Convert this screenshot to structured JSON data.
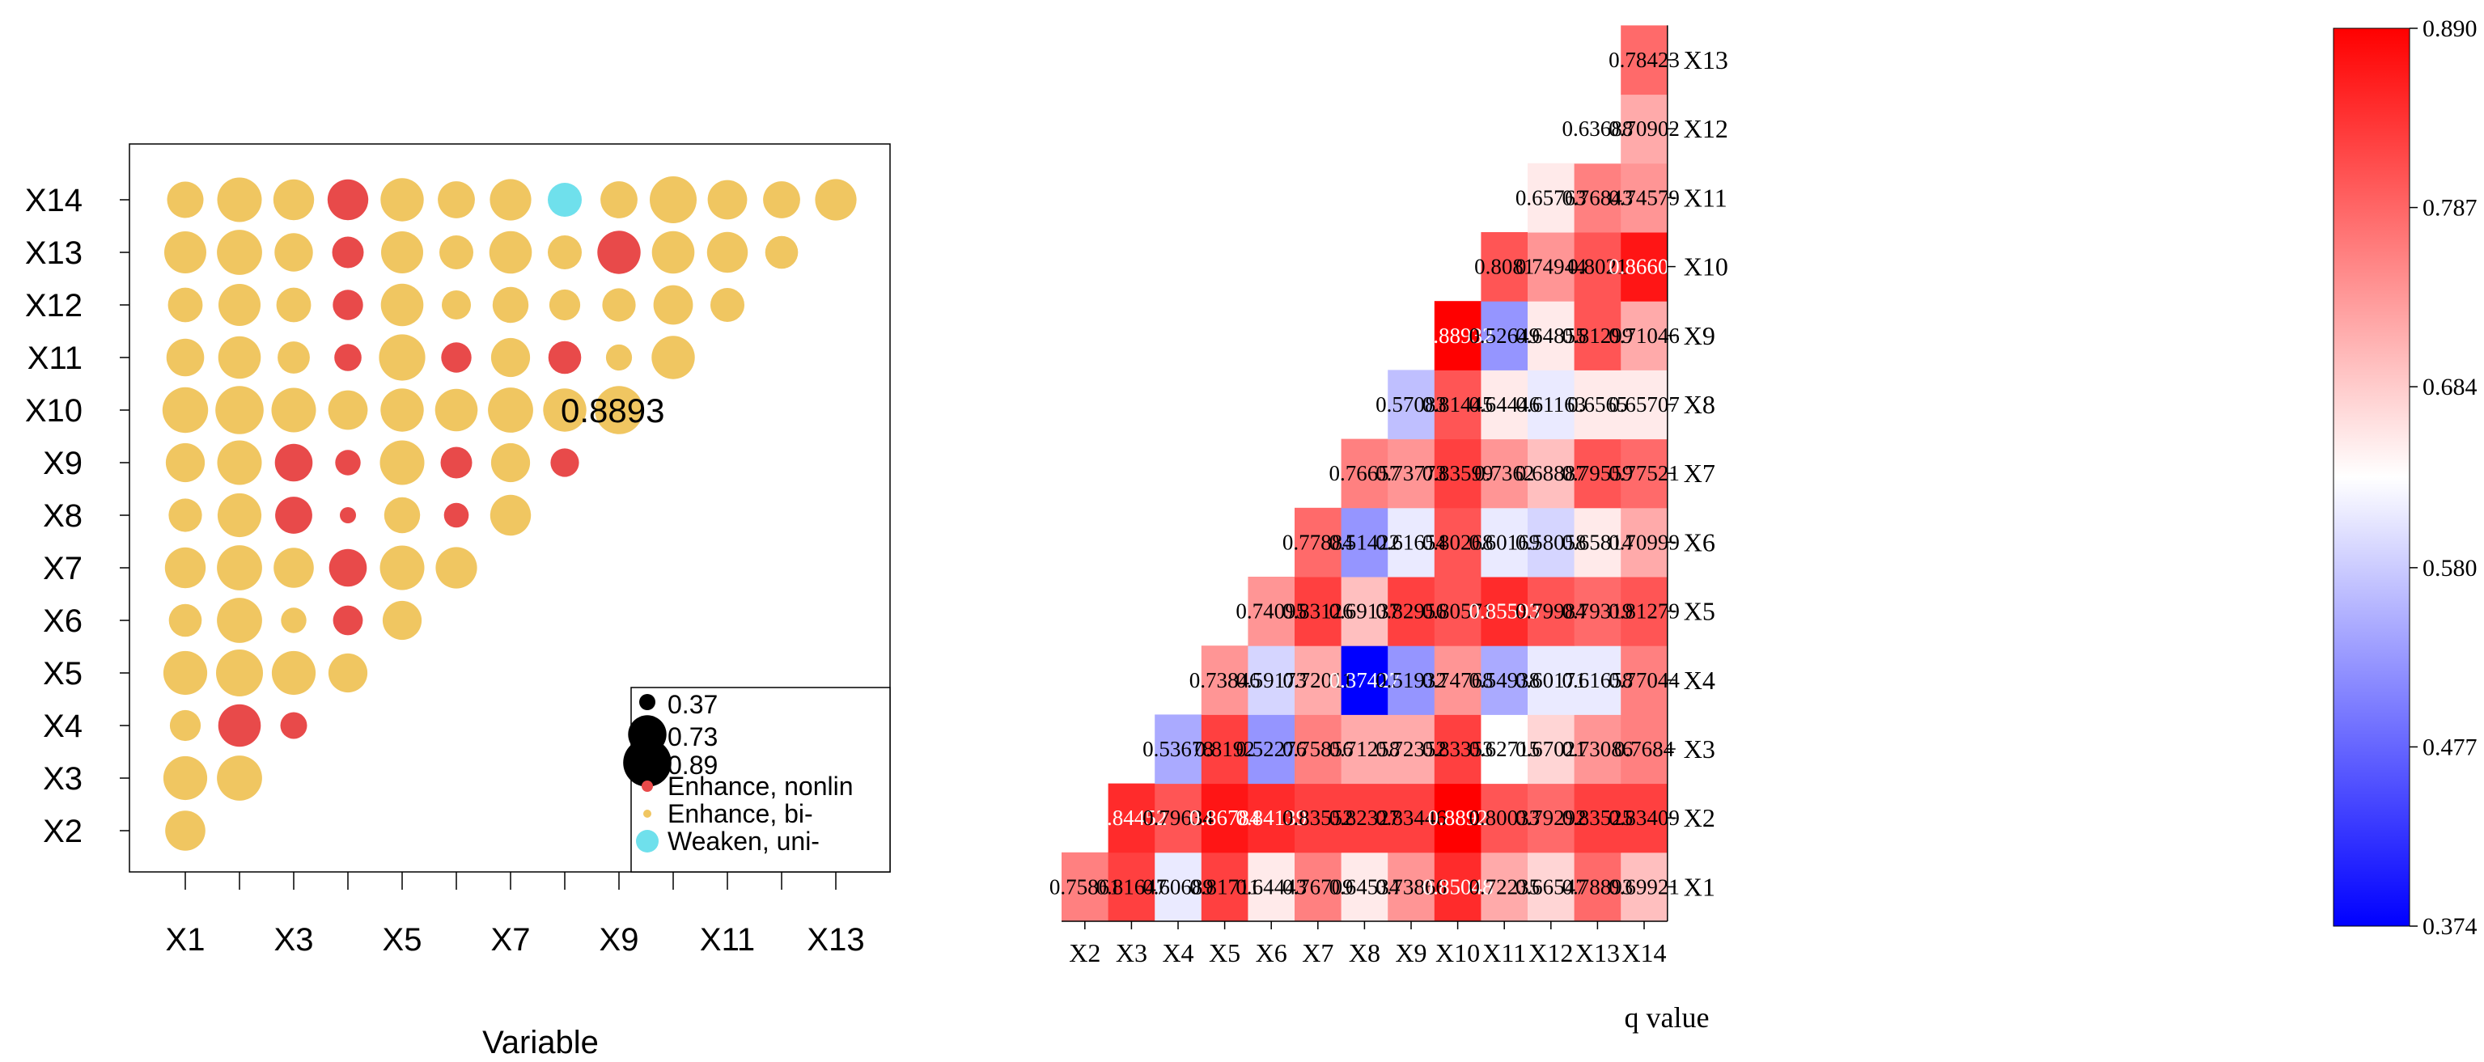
{
  "colors": {
    "enhance_nonlin": "#E84A4A",
    "enhance_bi": "#F0C661",
    "weaken_uni": "#6FE0EC",
    "legend_size": "#000000",
    "scale_low": "#0000FF",
    "scale_mid": "#FFFFFF",
    "scale_high": "#FF0000"
  },
  "chart_data": [
    {
      "type": "scatter",
      "title": "",
      "xlabel": "Variable",
      "ylabel": "",
      "x_categories": [
        "X1",
        "X2",
        "X3",
        "X4",
        "X5",
        "X6",
        "X7",
        "X8",
        "X9",
        "X10",
        "X11",
        "X12",
        "X13"
      ],
      "x_tick_labels": [
        "X1",
        "X3",
        "X5",
        "X7",
        "X9",
        "X11",
        "X13"
      ],
      "y_categories": [
        "X2",
        "X3",
        "X4",
        "X5",
        "X6",
        "X7",
        "X8",
        "X9",
        "X10",
        "X11",
        "X12",
        "X13",
        "X14"
      ],
      "annotation": {
        "text": "0.8893",
        "x": "X8",
        "y": "X10"
      },
      "legend": {
        "position": "bottom-right",
        "size_entries": [
          {
            "label": "0.37",
            "value": 0.37
          },
          {
            "label": "0.73",
            "value": 0.73
          },
          {
            "label": "0.89",
            "value": 0.89
          }
        ],
        "type_entries": [
          {
            "label": "Enhance, nonlin",
            "key": "enhance_nonlin"
          },
          {
            "label": "Enhance, bi-",
            "key": "enhance_bi"
          },
          {
            "label": "Weaken, uni-",
            "key": "weaken_uni"
          }
        ]
      },
      "points": [
        {
          "x": "X1",
          "y": "X2",
          "size": 0.76,
          "type": "enhance_bi"
        },
        {
          "x": "X1",
          "y": "X3",
          "size": 0.82,
          "type": "enhance_bi"
        },
        {
          "x": "X2",
          "y": "X3",
          "size": 0.84,
          "type": "enhance_bi"
        },
        {
          "x": "X1",
          "y": "X4",
          "size": 0.61,
          "type": "enhance_bi"
        },
        {
          "x": "X2",
          "y": "X4",
          "size": 0.8,
          "type": "enhance_nonlin"
        },
        {
          "x": "X3",
          "y": "X4",
          "size": 0.54,
          "type": "enhance_nonlin"
        },
        {
          "x": "X1",
          "y": "X5",
          "size": 0.82,
          "type": "enhance_bi"
        },
        {
          "x": "X2",
          "y": "X5",
          "size": 0.87,
          "type": "enhance_bi"
        },
        {
          "x": "X3",
          "y": "X5",
          "size": 0.82,
          "type": "enhance_bi"
        },
        {
          "x": "X4",
          "y": "X5",
          "size": 0.74,
          "type": "enhance_bi"
        },
        {
          "x": "X1",
          "y": "X6",
          "size": 0.64,
          "type": "enhance_bi"
        },
        {
          "x": "X2",
          "y": "X6",
          "size": 0.84,
          "type": "enhance_bi"
        },
        {
          "x": "X3",
          "y": "X6",
          "size": 0.52,
          "type": "enhance_bi"
        },
        {
          "x": "X4",
          "y": "X6",
          "size": 0.59,
          "type": "enhance_nonlin"
        },
        {
          "x": "X5",
          "y": "X6",
          "size": 0.74,
          "type": "enhance_bi"
        },
        {
          "x": "X1",
          "y": "X7",
          "size": 0.77,
          "type": "enhance_bi"
        },
        {
          "x": "X2",
          "y": "X7",
          "size": 0.84,
          "type": "enhance_bi"
        },
        {
          "x": "X3",
          "y": "X7",
          "size": 0.76,
          "type": "enhance_bi"
        },
        {
          "x": "X4",
          "y": "X7",
          "size": 0.72,
          "type": "enhance_nonlin"
        },
        {
          "x": "X5",
          "y": "X7",
          "size": 0.83,
          "type": "enhance_bi"
        },
        {
          "x": "X6",
          "y": "X7",
          "size": 0.78,
          "type": "enhance_bi"
        },
        {
          "x": "X1",
          "y": "X8",
          "size": 0.65,
          "type": "enhance_bi"
        },
        {
          "x": "X2",
          "y": "X8",
          "size": 0.82,
          "type": "enhance_bi"
        },
        {
          "x": "X3",
          "y": "X8",
          "size": 0.71,
          "type": "enhance_nonlin"
        },
        {
          "x": "X4",
          "y": "X8",
          "size": 0.37,
          "type": "enhance_nonlin"
        },
        {
          "x": "X5",
          "y": "X8",
          "size": 0.69,
          "type": "enhance_bi"
        },
        {
          "x": "X6",
          "y": "X8",
          "size": 0.51,
          "type": "enhance_nonlin"
        },
        {
          "x": "X7",
          "y": "X8",
          "size": 0.77,
          "type": "enhance_bi"
        },
        {
          "x": "X1",
          "y": "X9",
          "size": 0.74,
          "type": "enhance_bi"
        },
        {
          "x": "X2",
          "y": "X9",
          "size": 0.83,
          "type": "enhance_bi"
        },
        {
          "x": "X3",
          "y": "X9",
          "size": 0.72,
          "type": "enhance_nonlin"
        },
        {
          "x": "X4",
          "y": "X9",
          "size": 0.52,
          "type": "enhance_nonlin"
        },
        {
          "x": "X5",
          "y": "X9",
          "size": 0.83,
          "type": "enhance_bi"
        },
        {
          "x": "X6",
          "y": "X9",
          "size": 0.62,
          "type": "enhance_nonlin"
        },
        {
          "x": "X7",
          "y": "X9",
          "size": 0.74,
          "type": "enhance_bi"
        },
        {
          "x": "X8",
          "y": "X9",
          "size": 0.57,
          "type": "enhance_nonlin"
        },
        {
          "x": "X1",
          "y": "X10",
          "size": 0.85,
          "type": "enhance_bi"
        },
        {
          "x": "X2",
          "y": "X10",
          "size": 0.89,
          "type": "enhance_bi"
        },
        {
          "x": "X3",
          "y": "X10",
          "size": 0.83,
          "type": "enhance_bi"
        },
        {
          "x": "X4",
          "y": "X10",
          "size": 0.75,
          "type": "enhance_bi"
        },
        {
          "x": "X5",
          "y": "X10",
          "size": 0.81,
          "type": "enhance_bi"
        },
        {
          "x": "X6",
          "y": "X10",
          "size": 0.8,
          "type": "enhance_bi"
        },
        {
          "x": "X7",
          "y": "X10",
          "size": 0.84,
          "type": "enhance_bi"
        },
        {
          "x": "X8",
          "y": "X10",
          "size": 0.81,
          "type": "enhance_bi"
        },
        {
          "x": "X9",
          "y": "X10",
          "size": 0.89,
          "type": "enhance_bi"
        },
        {
          "x": "X1",
          "y": "X11",
          "size": 0.72,
          "type": "enhance_bi"
        },
        {
          "x": "X2",
          "y": "X11",
          "size": 0.8,
          "type": "enhance_bi"
        },
        {
          "x": "X3",
          "y": "X11",
          "size": 0.63,
          "type": "enhance_bi"
        },
        {
          "x": "X4",
          "y": "X11",
          "size": 0.55,
          "type": "enhance_nonlin"
        },
        {
          "x": "X5",
          "y": "X11",
          "size": 0.86,
          "type": "enhance_bi"
        },
        {
          "x": "X6",
          "y": "X11",
          "size": 0.6,
          "type": "enhance_nonlin"
        },
        {
          "x": "X7",
          "y": "X11",
          "size": 0.74,
          "type": "enhance_bi"
        },
        {
          "x": "X8",
          "y": "X11",
          "size": 0.64,
          "type": "enhance_nonlin"
        },
        {
          "x": "X9",
          "y": "X11",
          "size": 0.53,
          "type": "enhance_bi"
        },
        {
          "x": "X10",
          "y": "X11",
          "size": 0.81,
          "type": "enhance_bi"
        },
        {
          "x": "X1",
          "y": "X12",
          "size": 0.67,
          "type": "enhance_bi"
        },
        {
          "x": "X2",
          "y": "X12",
          "size": 0.79,
          "type": "enhance_bi"
        },
        {
          "x": "X3",
          "y": "X12",
          "size": 0.67,
          "type": "enhance_bi"
        },
        {
          "x": "X4",
          "y": "X12",
          "size": 0.6,
          "type": "enhance_nonlin"
        },
        {
          "x": "X5",
          "y": "X12",
          "size": 0.8,
          "type": "enhance_bi"
        },
        {
          "x": "X6",
          "y": "X12",
          "size": 0.58,
          "type": "enhance_bi"
        },
        {
          "x": "X7",
          "y": "X12",
          "size": 0.69,
          "type": "enhance_bi"
        },
        {
          "x": "X8",
          "y": "X12",
          "size": 0.61,
          "type": "enhance_bi"
        },
        {
          "x": "X9",
          "y": "X12",
          "size": 0.65,
          "type": "enhance_bi"
        },
        {
          "x": "X10",
          "y": "X12",
          "size": 0.75,
          "type": "enhance_bi"
        },
        {
          "x": "X11",
          "y": "X12",
          "size": 0.66,
          "type": "enhance_bi"
        },
        {
          "x": "X1",
          "y": "X13",
          "size": 0.79,
          "type": "enhance_bi"
        },
        {
          "x": "X2",
          "y": "X13",
          "size": 0.84,
          "type": "enhance_bi"
        },
        {
          "x": "X3",
          "y": "X13",
          "size": 0.73,
          "type": "enhance_bi"
        },
        {
          "x": "X4",
          "y": "X13",
          "size": 0.62,
          "type": "enhance_nonlin"
        },
        {
          "x": "X5",
          "y": "X13",
          "size": 0.79,
          "type": "enhance_bi"
        },
        {
          "x": "X6",
          "y": "X13",
          "size": 0.66,
          "type": "enhance_bi"
        },
        {
          "x": "X7",
          "y": "X13",
          "size": 0.8,
          "type": "enhance_bi"
        },
        {
          "x": "X8",
          "y": "X13",
          "size": 0.66,
          "type": "enhance_bi"
        },
        {
          "x": "X9",
          "y": "X13",
          "size": 0.81,
          "type": "enhance_nonlin"
        },
        {
          "x": "X10",
          "y": "X13",
          "size": 0.8,
          "type": "enhance_bi"
        },
        {
          "x": "X11",
          "y": "X13",
          "size": 0.77,
          "type": "enhance_bi"
        },
        {
          "x": "X12",
          "y": "X13",
          "size": 0.64,
          "type": "enhance_bi"
        },
        {
          "x": "X1",
          "y": "X14",
          "size": 0.7,
          "type": "enhance_bi"
        },
        {
          "x": "X2",
          "y": "X14",
          "size": 0.83,
          "type": "enhance_bi"
        },
        {
          "x": "X3",
          "y": "X14",
          "size": 0.77,
          "type": "enhance_bi"
        },
        {
          "x": "X4",
          "y": "X14",
          "size": 0.77,
          "type": "enhance_nonlin"
        },
        {
          "x": "X5",
          "y": "X14",
          "size": 0.81,
          "type": "enhance_bi"
        },
        {
          "x": "X6",
          "y": "X14",
          "size": 0.71,
          "type": "enhance_bi"
        },
        {
          "x": "X7",
          "y": "X14",
          "size": 0.78,
          "type": "enhance_bi"
        },
        {
          "x": "X8",
          "y": "X14",
          "size": 0.66,
          "type": "weaken_uni"
        },
        {
          "x": "X9",
          "y": "X14",
          "size": 0.71,
          "type": "enhance_bi"
        },
        {
          "x": "X10",
          "y": "X14",
          "size": 0.87,
          "type": "enhance_bi"
        },
        {
          "x": "X11",
          "y": "X14",
          "size": 0.75,
          "type": "enhance_bi"
        },
        {
          "x": "X12",
          "y": "X14",
          "size": 0.71,
          "type": "enhance_bi"
        },
        {
          "x": "X13",
          "y": "X14",
          "size": 0.78,
          "type": "enhance_bi"
        }
      ]
    },
    {
      "type": "heatmap",
      "title": "",
      "xlabel": "q value",
      "ylabel": "",
      "x_categories": [
        "X2",
        "X3",
        "X4",
        "X5",
        "X6",
        "X7",
        "X8",
        "X9",
        "X10",
        "X11",
        "X12",
        "X13",
        "X14"
      ],
      "y_categories": [
        "X1",
        "X2",
        "X3",
        "X4",
        "X5",
        "X6",
        "X7",
        "X8",
        "X9",
        "X10",
        "X11",
        "X12",
        "X13"
      ],
      "colorbar": {
        "min": 0.374,
        "max": 0.89,
        "tick_labels": [
          "0.890",
          "0.787",
          "0.684",
          "0.580",
          "0.477",
          "0.374"
        ],
        "tick_values": [
          0.89,
          0.787,
          0.684,
          0.58,
          0.477,
          0.374
        ]
      },
      "rows": [
        {
          "y": "X1",
          "values": [
            "0.75861",
            "0.81647",
            "0.60689",
            "0.81711",
            "0.64443",
            "0.76709",
            "0.64534",
            "0.73866",
            "0.85048",
            "0.72235",
            "0.66547",
            "0.78893",
            "0.69921"
          ]
        },
        {
          "y": "X2",
          "values": [
            null,
            "0.84452",
            "0.79634",
            "0.86784",
            "0.84139",
            "0.83552",
            "0.82327",
            "0.83446",
            "0.8892",
            "0.80033",
            "0.79292",
            "0.83525",
            "0.83409"
          ]
        },
        {
          "y": "X3",
          "values": [
            null,
            null,
            "0.53678",
            "0.8192",
            "0.52276",
            "0.75856",
            "0.71258",
            "0.72352",
            "0.83353",
            "0.62715",
            "0.67021",
            "0.73086",
            "0.7684"
          ]
        },
        {
          "y": "X4",
          "values": [
            null,
            null,
            null,
            "0.73846",
            "0.59173",
            "0.72011",
            "0.37427",
            "0.51932",
            "0.74768",
            "0.54938",
            "0.60171",
            "0.61658",
            "0.77044"
          ]
        },
        {
          "y": "X5",
          "values": [
            null,
            null,
            null,
            null,
            "0.74095",
            "0.83126",
            "0.69137",
            "0.82956",
            "0.80571",
            "0.85593",
            "0.79984",
            "0.79319",
            "0.81279"
          ]
        },
        {
          "y": "X6",
          "values": [
            null,
            null,
            null,
            null,
            null,
            "0.77884",
            "0.51422",
            "0.61654",
            "0.80268",
            "0.60169",
            "0.58058",
            "0.65814",
            "0.70999"
          ]
        },
        {
          "y": "X7",
          "values": [
            null,
            null,
            null,
            null,
            null,
            null,
            "0.76657",
            "0.73773",
            "0.83599",
            "0.7362",
            "0.68887",
            "0.79559",
            "0.77521"
          ]
        },
        {
          "y": "X8",
          "values": [
            null,
            null,
            null,
            null,
            null,
            null,
            null,
            "0.57083",
            "0.81445",
            "0.64446",
            "0.61163",
            "0.6565",
            "0.65707"
          ]
        },
        {
          "y": "X9",
          "values": [
            null,
            null,
            null,
            null,
            null,
            null,
            null,
            null,
            "0.88932",
            "0.52649",
            "0.64855",
            "0.81299",
            "0.71046"
          ]
        },
        {
          "y": "X10",
          "values": [
            null,
            null,
            null,
            null,
            null,
            null,
            null,
            null,
            null,
            "0.8081",
            "0.74944",
            "0.8021",
            "0.86604"
          ]
        },
        {
          "y": "X11",
          "values": [
            null,
            null,
            null,
            null,
            null,
            null,
            null,
            null,
            null,
            null,
            "0.65763",
            "0.76843",
            "0.74579"
          ]
        },
        {
          "y": "X12",
          "values": [
            null,
            null,
            null,
            null,
            null,
            null,
            null,
            null,
            null,
            null,
            null,
            "0.63688",
            "0.70902"
          ]
        },
        {
          "y": "X13",
          "values": [
            null,
            null,
            null,
            null,
            null,
            null,
            null,
            null,
            null,
            null,
            null,
            null,
            "0.78423"
          ]
        }
      ]
    }
  ]
}
